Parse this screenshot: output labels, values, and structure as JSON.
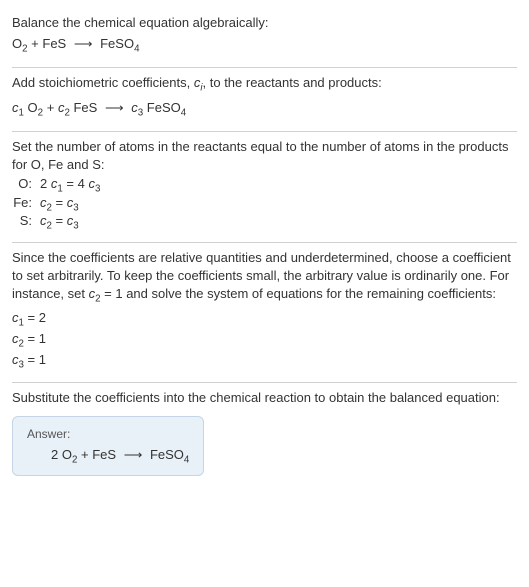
{
  "sections": [
    {
      "intro": "Balance the chemical equation algebraically:",
      "equation": "O<sub>2</sub> + FeS <span class=\"arrow\">⟶</span> FeSO<sub>4</sub>"
    },
    {
      "intro": "Add stoichiometric coefficients, <span class=\"italic\">c<sub>i</sub></span>, to the reactants and products:",
      "equation": "<span class=\"italic\">c</span><sub>1</sub> O<sub>2</sub> + <span class=\"italic\">c</span><sub>2</sub> FeS <span class=\"arrow\">⟶</span> <span class=\"italic\">c</span><sub>3</sub> FeSO<sub>4</sub>"
    },
    {
      "intro": "Set the number of atoms in the reactants equal to the number of atoms in the products for O, Fe and S:",
      "atoms": [
        {
          "label": "O:",
          "eq": "2 <span class=\"italic\">c</span><sub>1</sub> = 4 <span class=\"italic\">c</span><sub>3</sub>"
        },
        {
          "label": "Fe:",
          "eq": "<span class=\"italic\">c</span><sub>2</sub> = <span class=\"italic\">c</span><sub>3</sub>"
        },
        {
          "label": "S:",
          "eq": "<span class=\"italic\">c</span><sub>2</sub> = <span class=\"italic\">c</span><sub>3</sub>"
        }
      ]
    },
    {
      "intro": "Since the coefficients are relative quantities and underdetermined, choose a coefficient to set arbitrarily. To keep the coefficients small, the arbitrary value is ordinarily one. For instance, set <span class=\"italic\">c</span><sub>2</sub> = 1 and solve the system of equations for the remaining coefficients:",
      "coeffs": [
        "<span class=\"italic\">c</span><sub>1</sub> = 2",
        "<span class=\"italic\">c</span><sub>2</sub> = 1",
        "<span class=\"italic\">c</span><sub>3</sub> = 1"
      ]
    },
    {
      "intro": "Substitute the coefficients into the chemical reaction to obtain the balanced equation:",
      "answer": {
        "label": "Answer:",
        "equation": "2 O<sub>2</sub> + FeS <span class=\"arrow\">⟶</span> FeSO<sub>4</sub>"
      }
    }
  ],
  "colors": {
    "text": "#333333",
    "border": "#d0d0d0",
    "answer_bg": "#e8f0f8",
    "answer_border": "#c5d5e5",
    "answer_label": "#555555"
  }
}
